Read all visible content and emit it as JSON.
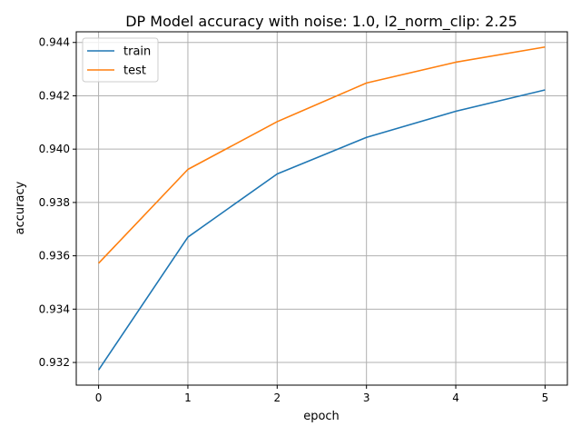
{
  "chart_data": {
    "type": "line",
    "title": "DP Model accuracy with noise: 1.0, l2_norm_clip: 2.25",
    "xlabel": "epoch",
    "ylabel": "accuracy",
    "x": [
      0,
      1,
      2,
      3,
      4,
      5
    ],
    "xticks": [
      "0",
      "1",
      "2",
      "3",
      "4",
      "5"
    ],
    "yticks": [
      "0.932",
      "0.934",
      "0.936",
      "0.938",
      "0.940",
      "0.942",
      "0.944"
    ],
    "ytick_values": [
      0.932,
      0.934,
      0.936,
      0.938,
      0.94,
      0.942,
      0.944
    ],
    "xlim": [
      -0.25,
      5.25
    ],
    "ylim": [
      0.93115,
      0.9444
    ],
    "grid": true,
    "legend_position": "top-left",
    "series": [
      {
        "name": "train",
        "color": "#1f77b4",
        "values": [
          0.93172,
          0.9367,
          0.93907,
          0.94044,
          0.94142,
          0.94222
        ]
      },
      {
        "name": "test",
        "color": "#ff7f0e",
        "values": [
          0.93572,
          0.93924,
          0.94103,
          0.94248,
          0.94326,
          0.94383
        ]
      }
    ]
  }
}
